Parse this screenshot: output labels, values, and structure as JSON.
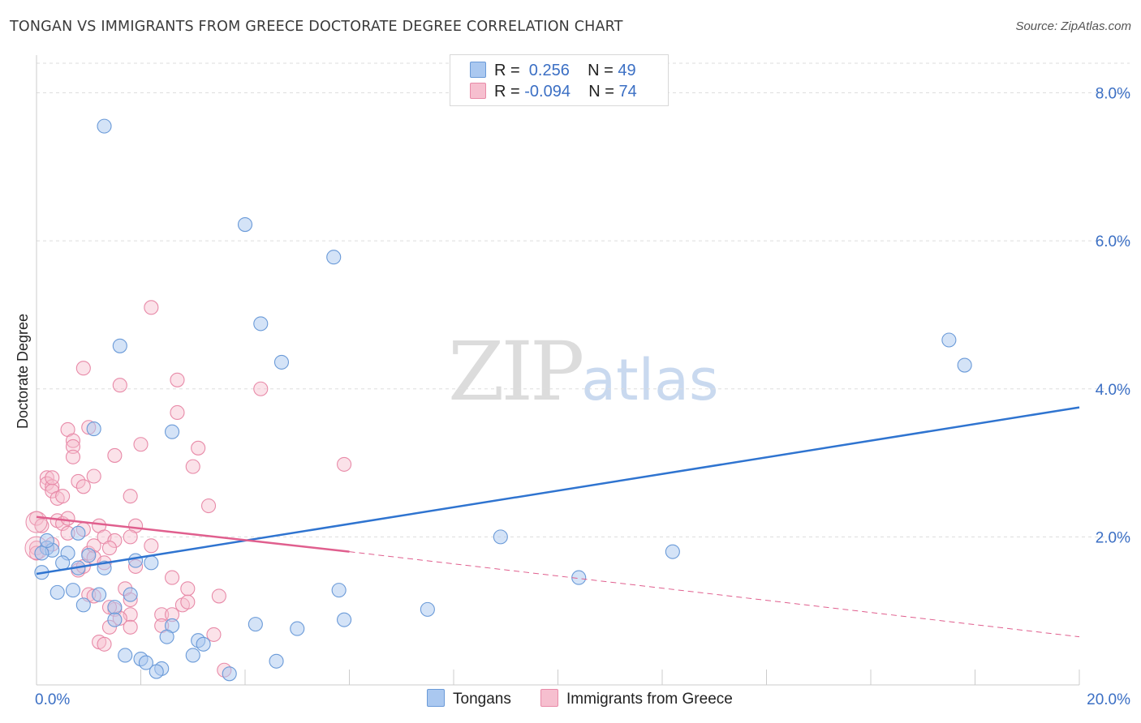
{
  "title": "TONGAN VS IMMIGRANTS FROM GREECE DOCTORATE DEGREE CORRELATION CHART",
  "source": "Source: ZipAtlas.com",
  "watermark": {
    "zip": "ZIP",
    "atlas": "atlas"
  },
  "legend": {
    "row1": {
      "r_label": "R = ",
      "r_value": " 0.256",
      "n_label": "N = ",
      "n_value": "49"
    },
    "row2": {
      "r_label": "R = ",
      "r_value": "-0.094",
      "n_label": "N = ",
      "n_value": "74"
    }
  },
  "colors": {
    "blue_fill": "#aac8f0",
    "blue_stroke": "#6a9ad8",
    "blue_line": "#2f74d0",
    "pink_fill": "#f6bfcf",
    "pink_stroke": "#e88aa8",
    "pink_line": "#e05f8e",
    "grid": "#dddddd",
    "tick_text": "#3b6fc4"
  },
  "chart_data": {
    "type": "scatter",
    "xlabel": "",
    "ylabel": "Doctorate Degree",
    "xlim": [
      0,
      20
    ],
    "ylim": [
      0,
      8.4
    ],
    "x_ticks_labels": [
      "0.0%",
      "20.0%"
    ],
    "y_ticks": [
      2,
      4,
      6,
      8
    ],
    "y_ticks_labels": [
      "2.0%",
      "4.0%",
      "6.0%",
      "8.0%"
    ],
    "series": [
      {
        "name": "Tongans",
        "points": [
          [
            1.3,
            7.55
          ],
          [
            4.0,
            6.22
          ],
          [
            5.7,
            5.78
          ],
          [
            4.3,
            4.88
          ],
          [
            1.6,
            4.58
          ],
          [
            4.7,
            4.36
          ],
          [
            17.5,
            4.66
          ],
          [
            17.8,
            4.32
          ],
          [
            1.1,
            3.46
          ],
          [
            2.6,
            3.42
          ],
          [
            0.2,
            1.85
          ],
          [
            0.3,
            1.82
          ],
          [
            0.1,
            1.78
          ],
          [
            0.6,
            1.78
          ],
          [
            0.8,
            2.05
          ],
          [
            0.5,
            1.65
          ],
          [
            0.8,
            1.58
          ],
          [
            1.0,
            1.75
          ],
          [
            1.3,
            1.58
          ],
          [
            1.9,
            1.68
          ],
          [
            2.2,
            1.65
          ],
          [
            0.2,
            1.95
          ],
          [
            0.1,
            1.52
          ],
          [
            0.4,
            1.25
          ],
          [
            0.7,
            1.28
          ],
          [
            1.2,
            1.22
          ],
          [
            1.8,
            1.22
          ],
          [
            0.9,
            1.08
          ],
          [
            1.5,
            1.05
          ],
          [
            1.5,
            0.88
          ],
          [
            2.6,
            0.8
          ],
          [
            2.5,
            0.65
          ],
          [
            4.2,
            0.82
          ],
          [
            5.0,
            0.76
          ],
          [
            5.9,
            0.88
          ],
          [
            5.8,
            1.28
          ],
          [
            7.5,
            1.02
          ],
          [
            8.9,
            2.0
          ],
          [
            10.4,
            1.45
          ],
          [
            12.2,
            1.8
          ],
          [
            3.1,
            0.6
          ],
          [
            3.2,
            0.55
          ],
          [
            1.7,
            0.4
          ],
          [
            2.0,
            0.35
          ],
          [
            2.1,
            0.3
          ],
          [
            2.4,
            0.22
          ],
          [
            2.3,
            0.18
          ],
          [
            3.0,
            0.4
          ],
          [
            3.7,
            0.15
          ],
          [
            4.6,
            0.32
          ]
        ]
      },
      {
        "name": "Immigrants from Greece",
        "points": [
          [
            2.2,
            5.1
          ],
          [
            0.9,
            4.28
          ],
          [
            1.6,
            4.05
          ],
          [
            2.7,
            4.12
          ],
          [
            4.3,
            4.0
          ],
          [
            2.7,
            3.68
          ],
          [
            0.6,
            3.45
          ],
          [
            1.0,
            3.48
          ],
          [
            0.7,
            3.3
          ],
          [
            0.7,
            3.22
          ],
          [
            1.5,
            3.1
          ],
          [
            0.7,
            3.08
          ],
          [
            3.1,
            3.2
          ],
          [
            3.0,
            2.95
          ],
          [
            2.0,
            3.25
          ],
          [
            5.9,
            2.98
          ],
          [
            1.1,
            2.82
          ],
          [
            0.2,
            2.8
          ],
          [
            0.2,
            2.72
          ],
          [
            0.8,
            2.75
          ],
          [
            0.9,
            2.68
          ],
          [
            0.3,
            2.68
          ],
          [
            0.3,
            2.62
          ],
          [
            0.4,
            2.52
          ],
          [
            0.5,
            2.55
          ],
          [
            1.8,
            2.55
          ],
          [
            3.3,
            2.42
          ],
          [
            0.0,
            2.25
          ],
          [
            0.4,
            2.22
          ],
          [
            0.5,
            2.18
          ],
          [
            0.6,
            2.25
          ],
          [
            1.2,
            2.15
          ],
          [
            1.9,
            2.15
          ],
          [
            0.1,
            2.15
          ],
          [
            0.6,
            2.05
          ],
          [
            1.3,
            2.0
          ],
          [
            1.5,
            1.95
          ],
          [
            1.8,
            2.0
          ],
          [
            2.2,
            1.88
          ],
          [
            0.0,
            1.85
          ],
          [
            0.0,
            1.78
          ],
          [
            0.3,
            1.9
          ],
          [
            1.0,
            1.78
          ],
          [
            1.1,
            1.88
          ],
          [
            1.4,
            1.85
          ],
          [
            1.1,
            1.72
          ],
          [
            1.3,
            1.65
          ],
          [
            1.9,
            1.6
          ],
          [
            0.8,
            1.55
          ],
          [
            0.9,
            1.6
          ],
          [
            2.6,
            1.45
          ],
          [
            1.7,
            1.3
          ],
          [
            1.8,
            1.15
          ],
          [
            2.9,
            1.3
          ],
          [
            3.5,
            1.2
          ],
          [
            1.0,
            1.22
          ],
          [
            1.5,
            1.02
          ],
          [
            1.8,
            0.95
          ],
          [
            2.4,
            0.95
          ],
          [
            2.6,
            0.95
          ],
          [
            2.8,
            1.08
          ],
          [
            2.9,
            1.12
          ],
          [
            1.6,
            0.9
          ],
          [
            2.4,
            0.8
          ],
          [
            1.8,
            0.78
          ],
          [
            1.4,
            0.78
          ],
          [
            3.4,
            0.68
          ],
          [
            1.2,
            0.58
          ],
          [
            1.3,
            0.55
          ],
          [
            3.6,
            0.2
          ],
          [
            1.1,
            1.2
          ],
          [
            1.4,
            1.05
          ],
          [
            0.3,
            2.8
          ],
          [
            0.9,
            2.1
          ]
        ]
      }
    ],
    "trendlines": [
      {
        "series": "Tongans",
        "from": [
          0,
          1.5
        ],
        "to": [
          20,
          3.75
        ],
        "style": "solid"
      },
      {
        "series": "Immigrants from Greece",
        "from": [
          0,
          2.27
        ],
        "to": [
          6.0,
          1.8
        ],
        "style": "solid"
      },
      {
        "series": "Immigrants from Greece",
        "from": [
          6.0,
          1.8
        ],
        "to": [
          20,
          0.65
        ],
        "style": "dashed"
      }
    ],
    "legend_labels": [
      "Tongans",
      "Immigrants from Greece"
    ]
  }
}
